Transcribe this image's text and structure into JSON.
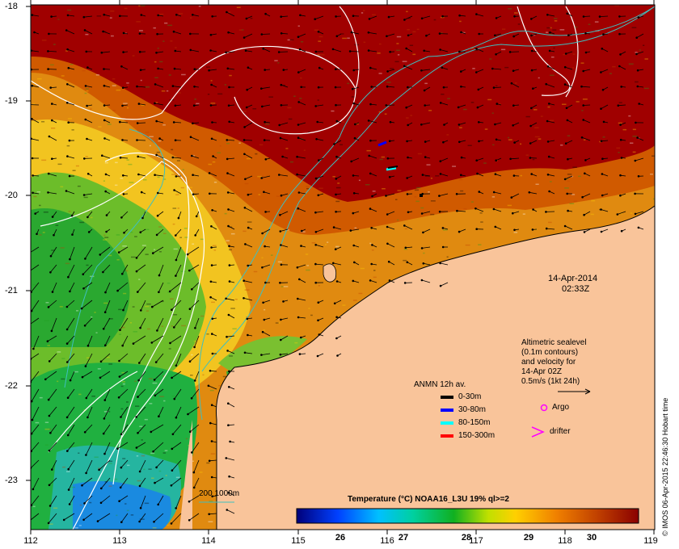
{
  "map": {
    "date": "14-Apr-2014",
    "time": "02:33Z",
    "x_ticks": [
      "112",
      "113",
      "114",
      "115",
      "116",
      "117",
      "118",
      "119"
    ],
    "y_ticks": [
      "-18",
      "-19",
      "-20",
      "-21",
      "-22",
      "-23"
    ],
    "altimetric_note": [
      "Altimetric sealevel",
      "(0.1m contours)",
      "and velocity for",
      "14-Apr 02Z",
      "0.5m/s (1kt 24h)"
    ],
    "argo_label": "Argo",
    "drifter_label": "drifter",
    "bathymetry_label": "200  1000m",
    "credit": "© IMOS 06-Apr-2015 22:46:30 Hobart time"
  },
  "legend": {
    "title": "ANMN 12h av.",
    "items": [
      {
        "label": "0-30m",
        "color": "#000000"
      },
      {
        "label": "30-80m",
        "color": "#0000ff"
      },
      {
        "label": "80-150m",
        "color": "#00ffff"
      },
      {
        "label": "150-300m",
        "color": "#ff0000"
      }
    ]
  },
  "colorbar": {
    "title": "Temperature (°C) NOAA16_L3U 19% ql>=2",
    "ticks": [
      "26",
      "27",
      "28",
      "29",
      "30"
    ]
  },
  "colors": {
    "land": "#f9c49a",
    "warm": "#a00000",
    "argo": "#ff00ff",
    "contour_white": "#ffffff",
    "bathy_cyan": "#3fbfbf"
  }
}
